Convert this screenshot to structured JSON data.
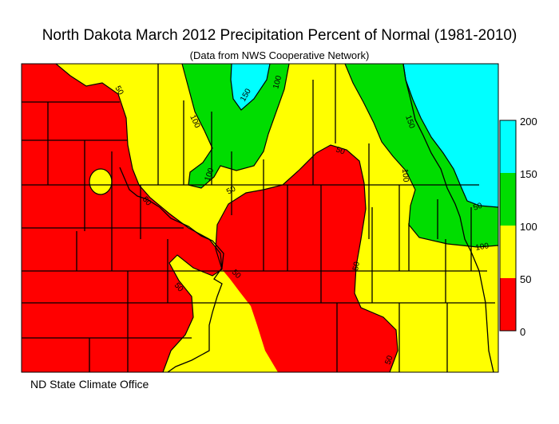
{
  "title": "North Dakota March 2012 Precipitation Percent of Normal (1981-2010)",
  "subtitle": "(Data from NWS Cooperative Network)",
  "footer": "ND State Climate Office",
  "colors": {
    "bin_0_50": "#ff0000",
    "bin_50_100": "#ffff00",
    "bin_100_150": "#00dd00",
    "bin_150_200": "#00ffff"
  },
  "legend": {
    "ticks": [
      "200",
      "150",
      "100",
      "50",
      "0"
    ]
  },
  "contour_labels": [
    "50",
    "150",
    "100",
    "100",
    "150",
    "100",
    "50",
    "50",
    "50",
    "50",
    "50",
    "100",
    "50",
    "50",
    "100",
    "50"
  ]
}
